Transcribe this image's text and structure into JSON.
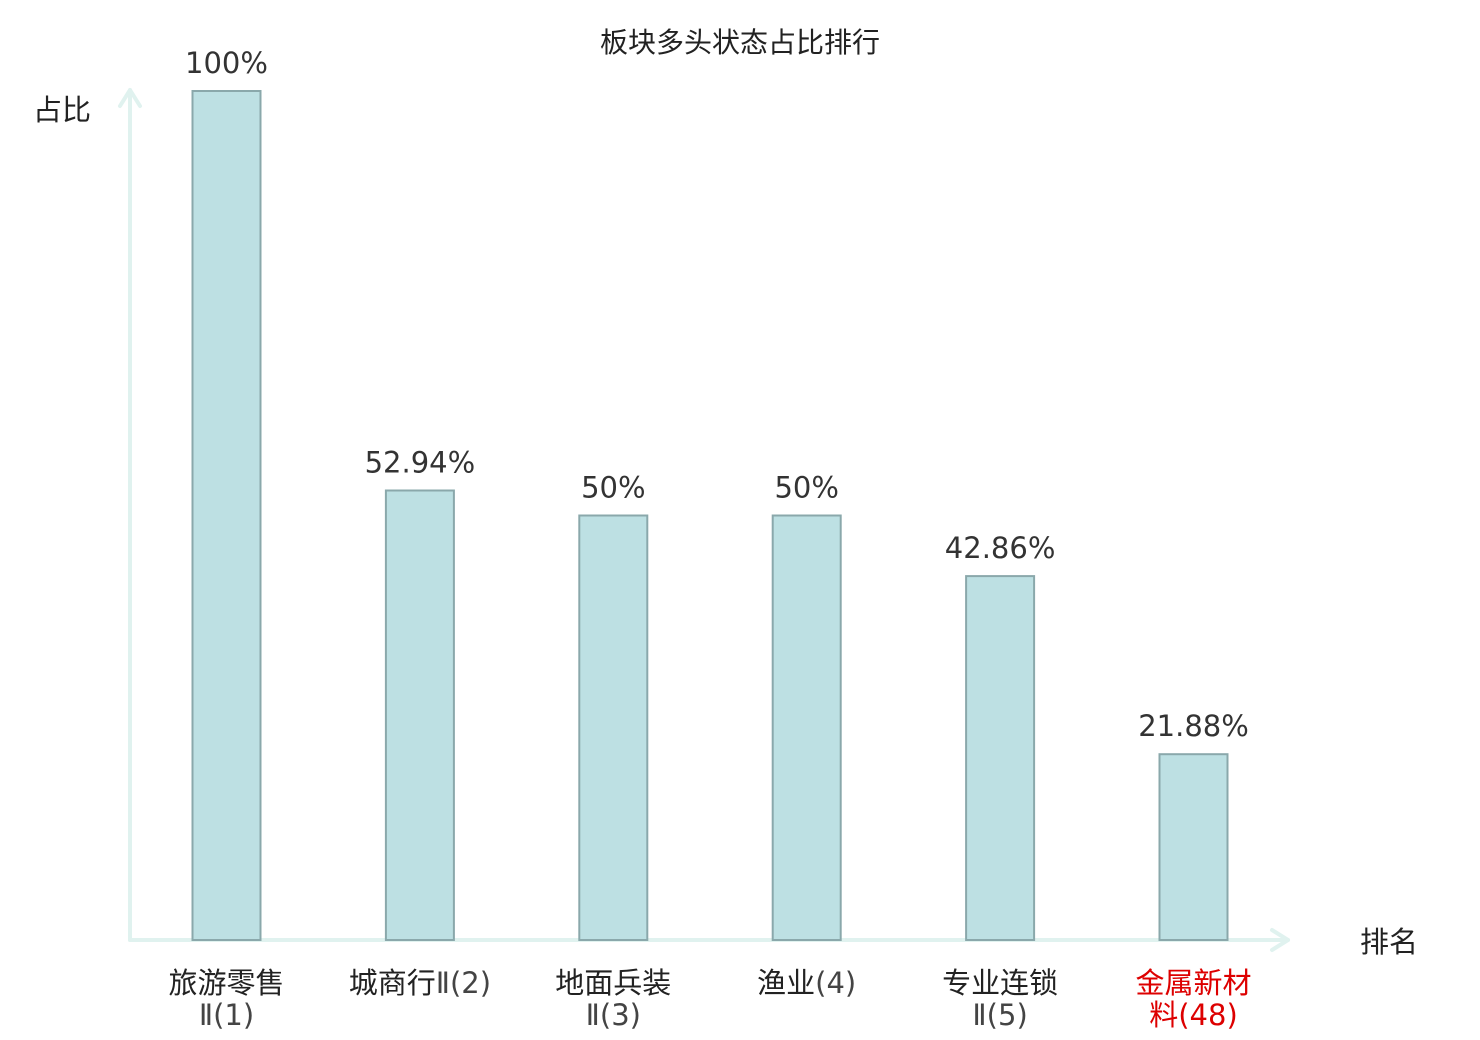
{
  "chart_data": {
    "type": "bar",
    "title": "板块多头状态占比排行",
    "ylabel": "占比",
    "xlabel": "排名",
    "ylim": [
      0,
      100
    ],
    "grid": false,
    "legend": "none",
    "categories": [
      {
        "name": "旅游零售",
        "rank_label": "Ⅱ(1)",
        "highlight": false
      },
      {
        "name": "城商行",
        "rank_label": "Ⅱ(2)",
        "highlight": false
      },
      {
        "name": "地面兵装",
        "rank_label": "Ⅱ(3)",
        "highlight": false
      },
      {
        "name": "渔业",
        "rank_label": "(4)",
        "highlight": false
      },
      {
        "name": "专业连锁",
        "rank_label": "Ⅱ(5)",
        "highlight": false
      },
      {
        "name": "金属新材",
        "rank_label": "料(48)",
        "highlight": true
      }
    ],
    "values": [
      100,
      52.94,
      50,
      50,
      42.86,
      21.88
    ],
    "value_labels": [
      "100%",
      "52.94%",
      "50%",
      "50%",
      "42.86%",
      "21.88%"
    ],
    "colors": {
      "bar_fill": "#bde0e3",
      "bar_stroke": "#8aa8ab",
      "axis": "#e0f2ef",
      "text": "#222222",
      "rank_text": "#444444",
      "highlight": "#dd0000"
    }
  }
}
